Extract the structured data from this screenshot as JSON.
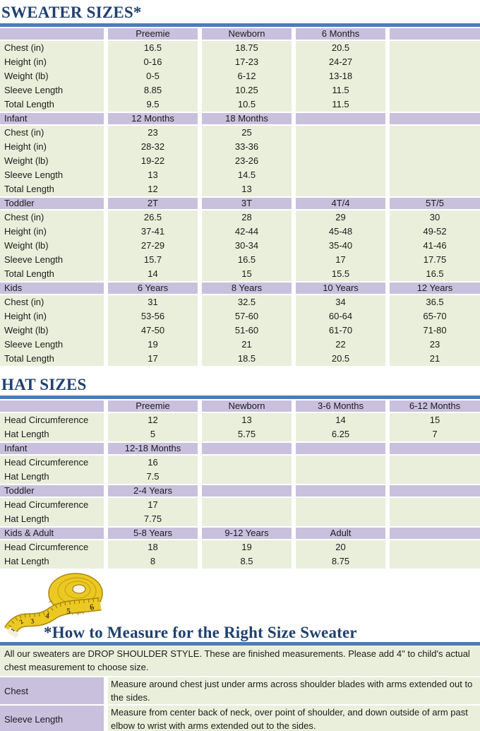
{
  "page": {
    "title_sweater": "SWEATER SIZES*",
    "title_hat": "HAT SIZES",
    "title_measure": "*How to Measure for the Right Size Sweater"
  },
  "colors": {
    "heading_navy": "#1f4170",
    "rule_blue": "#4a7cba",
    "header_purple": "#c9c0de",
    "row_green": "#e9efda",
    "text": "#1c1c1c",
    "tape_yellow": "#ecc922"
  },
  "icons": {
    "tape_measure": "curled-yellow-measuring-tape"
  },
  "sweater_table": {
    "rows": [
      {
        "type": "header",
        "cells": [
          "",
          "Preemie",
          "Newborn",
          "6 Months",
          ""
        ]
      },
      {
        "type": "data",
        "cells": [
          "Chest (in)",
          "16.5",
          "18.75",
          "20.5",
          ""
        ]
      },
      {
        "type": "data",
        "cells": [
          "Height (in)",
          "0-16",
          "17-23",
          "24-27",
          ""
        ]
      },
      {
        "type": "data",
        "cells": [
          "Weight (lb)",
          "0-5",
          "6-12",
          "13-18",
          ""
        ]
      },
      {
        "type": "data",
        "cells": [
          "Sleeve Length",
          "8.85",
          "10.25",
          "11.5",
          ""
        ]
      },
      {
        "type": "data",
        "cells": [
          "Total Length",
          "9.5",
          "10.5",
          "11.5",
          ""
        ]
      },
      {
        "type": "header",
        "cells": [
          "Infant",
          "12 Months",
          "18 Months",
          "",
          ""
        ]
      },
      {
        "type": "data",
        "cells": [
          "Chest (in)",
          "23",
          "25",
          "",
          ""
        ]
      },
      {
        "type": "data",
        "cells": [
          "Height (in)",
          "28-32",
          "33-36",
          "",
          ""
        ]
      },
      {
        "type": "data",
        "cells": [
          "Weight (lb)",
          "19-22",
          "23-26",
          "",
          ""
        ]
      },
      {
        "type": "data",
        "cells": [
          "Sleeve Length",
          "13",
          "14.5",
          "",
          ""
        ]
      },
      {
        "type": "data",
        "cells": [
          "Total Length",
          "12",
          "13",
          "",
          ""
        ]
      },
      {
        "type": "header",
        "cells": [
          "Toddler",
          "2T",
          "3T",
          "4T/4",
          "5T/5"
        ]
      },
      {
        "type": "data",
        "cells": [
          "Chest (in)",
          "26.5",
          "28",
          "29",
          "30"
        ]
      },
      {
        "type": "data",
        "cells": [
          "Height (in)",
          "37-41",
          "42-44",
          "45-48",
          "49-52"
        ]
      },
      {
        "type": "data",
        "cells": [
          "Weight (lb)",
          "27-29",
          "30-34",
          "35-40",
          "41-46"
        ]
      },
      {
        "type": "data",
        "cells": [
          "Sleeve Length",
          "15.7",
          "16.5",
          "17",
          "17.75"
        ]
      },
      {
        "type": "data",
        "cells": [
          "Total Length",
          "14",
          "15",
          "15.5",
          "16.5"
        ]
      },
      {
        "type": "header",
        "cells": [
          "Kids",
          "6 Years",
          "8 Years",
          "10 Years",
          "12 Years"
        ]
      },
      {
        "type": "data",
        "cells": [
          "Chest (in)",
          "31",
          "32.5",
          "34",
          "36.5"
        ]
      },
      {
        "type": "data",
        "cells": [
          "Height (in)",
          "53-56",
          "57-60",
          "60-64",
          "65-70"
        ]
      },
      {
        "type": "data",
        "cells": [
          "Weight (lb)",
          "47-50",
          "51-60",
          "61-70",
          "71-80"
        ]
      },
      {
        "type": "data",
        "cells": [
          "Sleeve Length",
          "19",
          "21",
          "22",
          "23"
        ]
      },
      {
        "type": "data",
        "cells": [
          "Total Length",
          "17",
          "18.5",
          "20.5",
          "21"
        ]
      }
    ]
  },
  "hat_table": {
    "rows": [
      {
        "type": "header",
        "cells": [
          "",
          "Preemie",
          "Newborn",
          "3-6 Months",
          "6-12 Months"
        ]
      },
      {
        "type": "data",
        "cells": [
          "Head Circumference",
          "12",
          "13",
          "14",
          "15"
        ]
      },
      {
        "type": "data",
        "cells": [
          "Hat Length",
          "5",
          "5.75",
          "6.25",
          "7"
        ]
      },
      {
        "type": "header",
        "cells": [
          "Infant",
          "12-18 Months",
          "",
          "",
          ""
        ]
      },
      {
        "type": "data",
        "cells": [
          "Head Circumference",
          "16",
          "",
          "",
          ""
        ]
      },
      {
        "type": "data",
        "cells": [
          "Hat Length",
          "7.5",
          "",
          "",
          ""
        ]
      },
      {
        "type": "header",
        "cells": [
          "Toddler",
          "2-4 Years",
          "",
          "",
          ""
        ]
      },
      {
        "type": "data",
        "cells": [
          "Head Circumference",
          "17",
          "",
          "",
          ""
        ]
      },
      {
        "type": "data",
        "cells": [
          "Hat Length",
          "7.75",
          "",
          "",
          ""
        ]
      },
      {
        "type": "header",
        "cells": [
          "Kids & Adult",
          "5-8 Years",
          "9-12 Years",
          "Adult",
          ""
        ]
      },
      {
        "type": "data",
        "cells": [
          "Head Circumference",
          "18",
          "19",
          "20",
          ""
        ]
      },
      {
        "type": "data",
        "cells": [
          "Hat Length",
          "8",
          "8.5",
          "8.75",
          ""
        ]
      }
    ]
  },
  "measure": {
    "intro": "All our sweaters are DROP SHOULDER STYLE.  These are finished measurements.  Please add 4\" to child's actual chest measurement to choose size.",
    "rows": [
      {
        "label": "Chest",
        "text": "Measure around chest just under arms across shoulder blades with arms extended out to the sides."
      },
      {
        "label": "Sleeve Length",
        "text": "Measure from center back of neck, over point of shoulder, and down outside of arm past elbow to wrist with arms extended out to the sides."
      }
    ]
  }
}
